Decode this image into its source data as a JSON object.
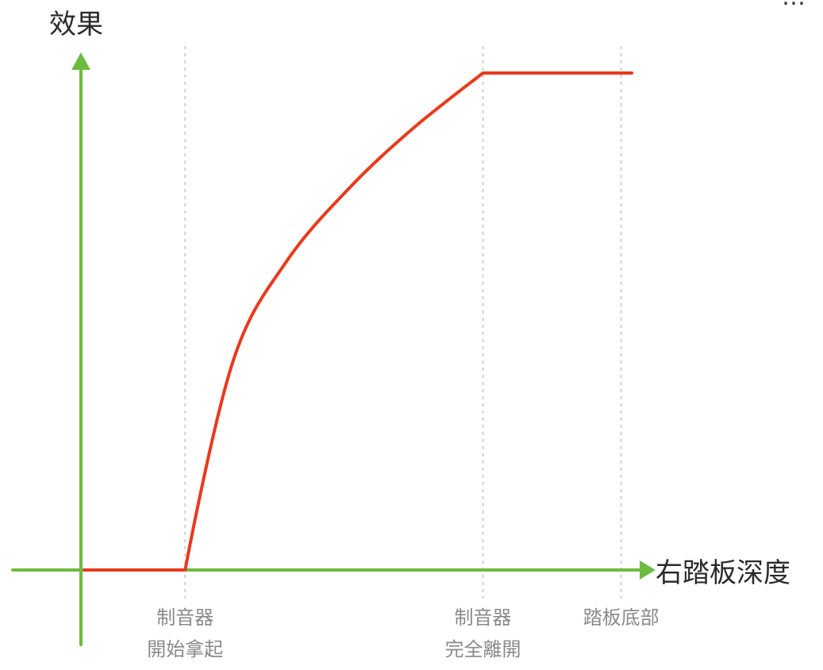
{
  "chart_data": {
    "type": "line",
    "title": "",
    "corner_text": "…",
    "xlabel": "右踏板深度",
    "ylabel": "效果",
    "xlim": [
      0,
      100
    ],
    "ylim": [
      0,
      100
    ],
    "grid": false,
    "vertical_markers": [
      {
        "x": 19,
        "lines": [
          "制音器",
          "開始拿起"
        ]
      },
      {
        "x": 75,
        "lines": [
          "制音器",
          "完全離開"
        ]
      },
      {
        "x": 101,
        "lines": [
          "踏板底部"
        ]
      }
    ],
    "series": [
      {
        "color": "#e83a1c",
        "points": [
          [
            0,
            0
          ],
          [
            19,
            0
          ],
          [
            28,
            42
          ],
          [
            38,
            62
          ],
          [
            50,
            77
          ],
          [
            62,
            89
          ],
          [
            75,
            100
          ],
          [
            103,
            100
          ]
        ]
      }
    ],
    "colors": {
      "axis": "#6dbb3f",
      "curve": "#e83a1c",
      "guide": "#d0d0d0"
    }
  }
}
